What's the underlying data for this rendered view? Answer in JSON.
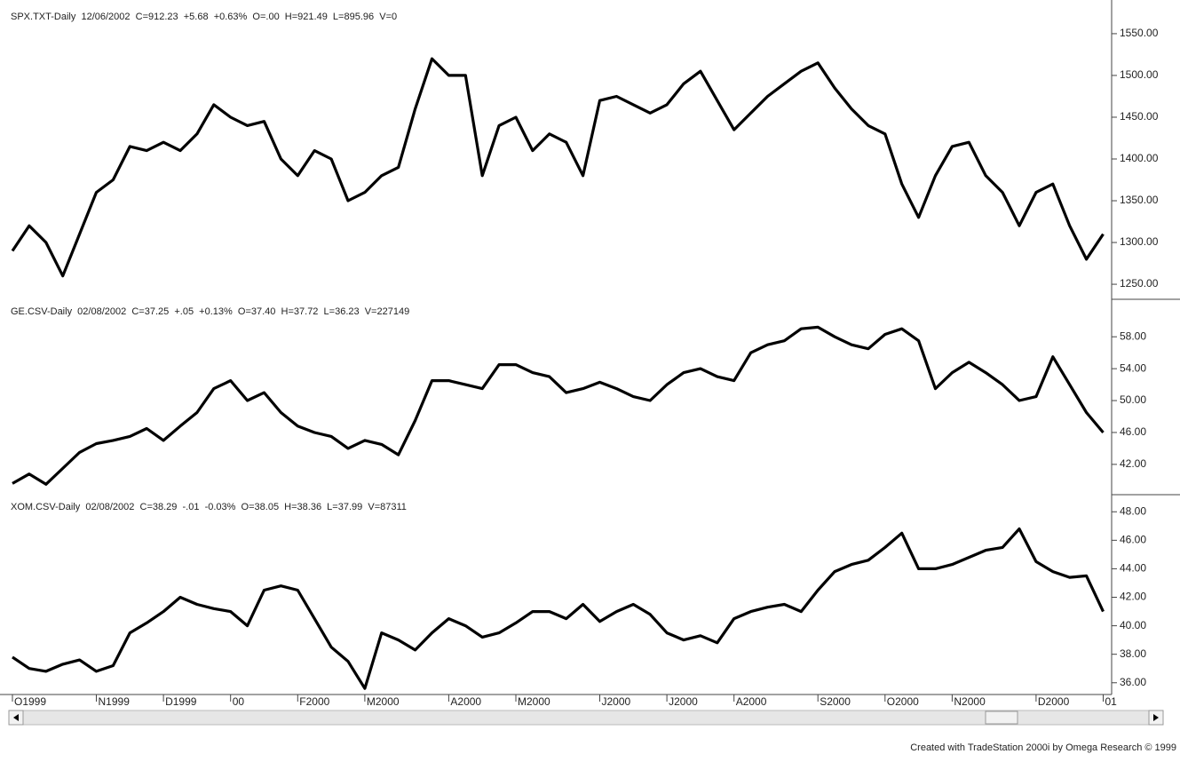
{
  "chart_data": [
    {
      "type": "line",
      "title": "SPX.TXT-Daily  12/06/2002  C=912.23  +5.68  +0.63%  O=.00  H=921.49  L=895.96  V=0",
      "color": "#000000",
      "values": [
        1290,
        1320,
        1300,
        1260,
        1310,
        1360,
        1375,
        1415,
        1410,
        1420,
        1410,
        1430,
        1465,
        1450,
        1440,
        1445,
        1400,
        1380,
        1410,
        1400,
        1350,
        1360,
        1380,
        1390,
        1460,
        1520,
        1500,
        1500,
        1380,
        1440,
        1450,
        1410,
        1430,
        1420,
        1380,
        1470,
        1475,
        1465,
        1455,
        1465,
        1490,
        1505,
        1470,
        1435,
        1455,
        1475,
        1490,
        1505,
        1515,
        1485,
        1460,
        1440,
        1430,
        1370,
        1330,
        1380,
        1415,
        1420,
        1380,
        1360,
        1320,
        1360,
        1370,
        1320,
        1280,
        1310
      ],
      "ylim": [
        1232,
        1585
      ],
      "yticks": [
        {
          "value": 1250,
          "label": "1250.00"
        },
        {
          "value": 1300,
          "label": "1300.00"
        },
        {
          "value": 1350,
          "label": "1350.00"
        },
        {
          "value": 1400,
          "label": "1400.00"
        },
        {
          "value": 1450,
          "label": "1450.00"
        },
        {
          "value": 1500,
          "label": "1500.00"
        },
        {
          "value": 1550,
          "label": "1550.00"
        }
      ]
    },
    {
      "type": "line",
      "title": "GE.CSV-Daily  02/08/2002  C=37.25  +.05  +0.13%  O=37.40  H=37.72  L=36.23  V=227149",
      "color": "#000000",
      "values": [
        39.6,
        40.8,
        39.5,
        41.5,
        43.5,
        44.6,
        45.0,
        45.5,
        46.5,
        45.0,
        46.8,
        48.5,
        51.5,
        52.5,
        50.0,
        51.0,
        48.5,
        46.8,
        46.0,
        45.5,
        44.0,
        45.0,
        44.5,
        43.2,
        47.5,
        52.5,
        52.5,
        52.0,
        51.5,
        54.5,
        54.5,
        53.5,
        53.0,
        51.0,
        51.5,
        52.3,
        51.5,
        50.5,
        50.0,
        52.0,
        53.5,
        54.0,
        53.0,
        52.5,
        56.0,
        57.0,
        57.5,
        59.0,
        59.2,
        58.0,
        57.0,
        56.5,
        58.3,
        59.0,
        57.5,
        51.5,
        53.5,
        54.8,
        53.5,
        52.0,
        50.0,
        50.5,
        55.5,
        52.0,
        48.5,
        46.0
      ],
      "ylim": [
        38.2,
        62.7
      ],
      "yticks": [
        {
          "value": 42,
          "label": "42.00"
        },
        {
          "value": 46,
          "label": "46.00"
        },
        {
          "value": 50,
          "label": "50.00"
        },
        {
          "value": 54,
          "label": "54.00"
        },
        {
          "value": 58,
          "label": "58.00"
        }
      ]
    },
    {
      "type": "line",
      "title": "XOM.CSV-Daily  02/08/2002  C=38.29  -.01  -0.03%  O=38.05  H=38.36  L=37.99  V=87311",
      "color": "#000000",
      "values": [
        37.8,
        37.0,
        36.8,
        37.3,
        37.6,
        36.8,
        37.2,
        39.5,
        40.2,
        41.0,
        42.0,
        41.5,
        41.2,
        41.0,
        40.0,
        42.5,
        42.8,
        42.5,
        40.5,
        38.5,
        37.5,
        35.6,
        39.5,
        39.0,
        38.3,
        39.5,
        40.5,
        40.0,
        39.2,
        39.5,
        40.2,
        41.0,
        41.0,
        40.5,
        41.5,
        40.3,
        41.0,
        41.5,
        40.8,
        39.5,
        39.0,
        39.3,
        38.8,
        40.5,
        41.0,
        41.3,
        41.5,
        41.0,
        42.5,
        43.8,
        44.3,
        44.6,
        45.5,
        46.5,
        44.0,
        44.0,
        44.3,
        44.8,
        45.3,
        45.5,
        46.8,
        44.5,
        43.8,
        43.4,
        43.5,
        41.0
      ],
      "categories": [
        "O1999",
        null,
        null,
        null,
        null,
        "N1999",
        null,
        null,
        null,
        "D1999",
        null,
        null,
        null,
        "00",
        null,
        null,
        null,
        "F2000",
        null,
        null,
        null,
        "M2000",
        null,
        null,
        null,
        null,
        "A2000",
        null,
        null,
        null,
        "M2000",
        null,
        null,
        null,
        null,
        "J2000",
        null,
        null,
        null,
        "J2000",
        null,
        null,
        null,
        "A2000",
        null,
        null,
        null,
        null,
        "S2000",
        null,
        null,
        null,
        "O2000",
        null,
        null,
        null,
        "N2000",
        null,
        null,
        null,
        null,
        "D2000",
        null,
        null,
        null,
        "01"
      ],
      "ylim": [
        35.3,
        49.2
      ],
      "yticks": [
        {
          "value": 36,
          "label": "36.00"
        },
        {
          "value": 38,
          "label": "38.00"
        },
        {
          "value": 40,
          "label": "40.00"
        },
        {
          "value": 42,
          "label": "42.00"
        },
        {
          "value": 44,
          "label": "44.00"
        },
        {
          "value": 46,
          "label": "46.00"
        },
        {
          "value": 48,
          "label": "48.00"
        }
      ]
    }
  ],
  "footer": "Created with TradeStation 2000i by Omega Research © 1999"
}
